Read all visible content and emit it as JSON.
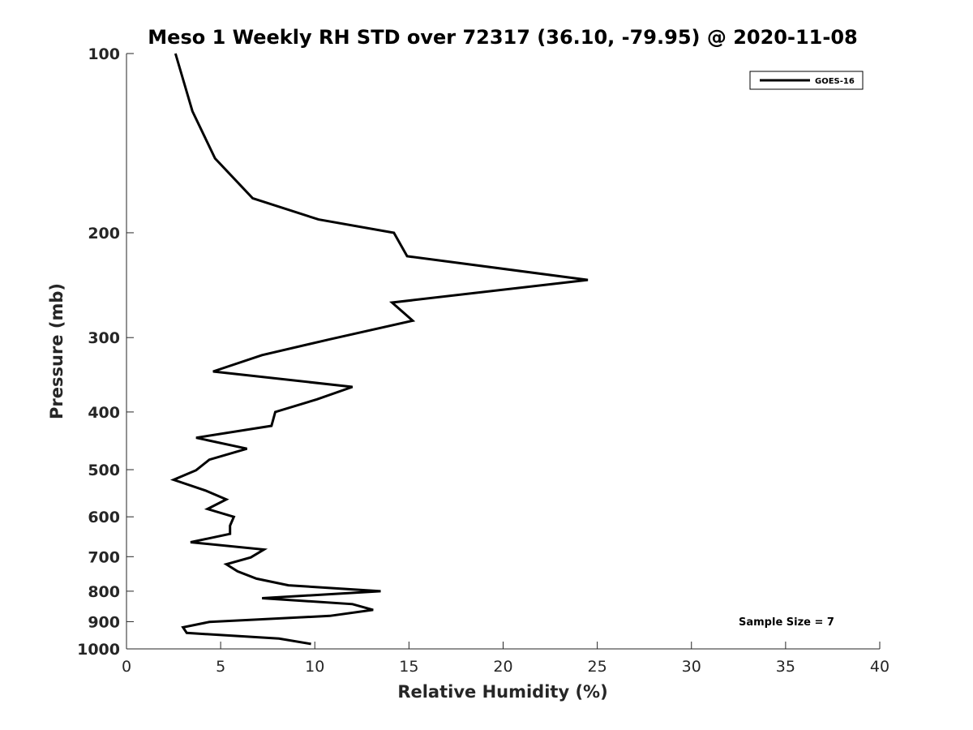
{
  "chart_data": {
    "type": "line",
    "title": "Meso 1 Weekly RH STD over 72317 (36.10, -79.95) @ 2020-11-08",
    "xlabel": "Relative Humidity (%)",
    "ylabel": "Pressure (mb)",
    "xlim": [
      0,
      40
    ],
    "ylim": [
      100,
      1000
    ],
    "y_scale": "log",
    "y_reversed": true,
    "x_ticks": [
      0,
      5,
      10,
      15,
      20,
      25,
      30,
      35,
      40
    ],
    "y_ticks": [
      100,
      200,
      300,
      400,
      500,
      600,
      700,
      800,
      900,
      1000
    ],
    "grid": false,
    "legend_position": "top-right",
    "series": [
      {
        "name": "GOES-16",
        "color": "#000000",
        "points": [
          [
            2.6,
            100
          ],
          [
            3.5,
            125
          ],
          [
            4.7,
            150
          ],
          [
            6.7,
            175
          ],
          [
            10.2,
            190
          ],
          [
            14.2,
            200
          ],
          [
            14.9,
            219
          ],
          [
            24.5,
            240
          ],
          [
            14.1,
            262
          ],
          [
            15.2,
            281
          ],
          [
            10.8,
            302
          ],
          [
            7.2,
            321
          ],
          [
            4.6,
            342
          ],
          [
            12.0,
            363
          ],
          [
            10.1,
            381
          ],
          [
            7.9,
            400
          ],
          [
            7.7,
            422
          ],
          [
            3.7,
            442
          ],
          [
            6.4,
            461
          ],
          [
            4.4,
            481
          ],
          [
            3.7,
            501
          ],
          [
            2.5,
            520
          ],
          [
            4.2,
            542
          ],
          [
            5.3,
            561
          ],
          [
            4.3,
            582
          ],
          [
            5.7,
            600
          ],
          [
            5.5,
            621
          ],
          [
            5.5,
            641
          ],
          [
            3.4,
            662
          ],
          [
            7.3,
            681
          ],
          [
            6.6,
            702
          ],
          [
            5.3,
            721
          ],
          [
            5.9,
            741
          ],
          [
            6.9,
            762
          ],
          [
            8.6,
            782
          ],
          [
            13.5,
            800
          ],
          [
            7.2,
            822
          ],
          [
            12.0,
            841
          ],
          [
            13.1,
            860
          ],
          [
            10.8,
            880
          ],
          [
            4.4,
            901
          ],
          [
            3.0,
            920
          ],
          [
            3.2,
            940
          ],
          [
            8.1,
            961
          ],
          [
            9.8,
            981
          ]
        ]
      }
    ],
    "annotation": "Sample Size = 7"
  }
}
